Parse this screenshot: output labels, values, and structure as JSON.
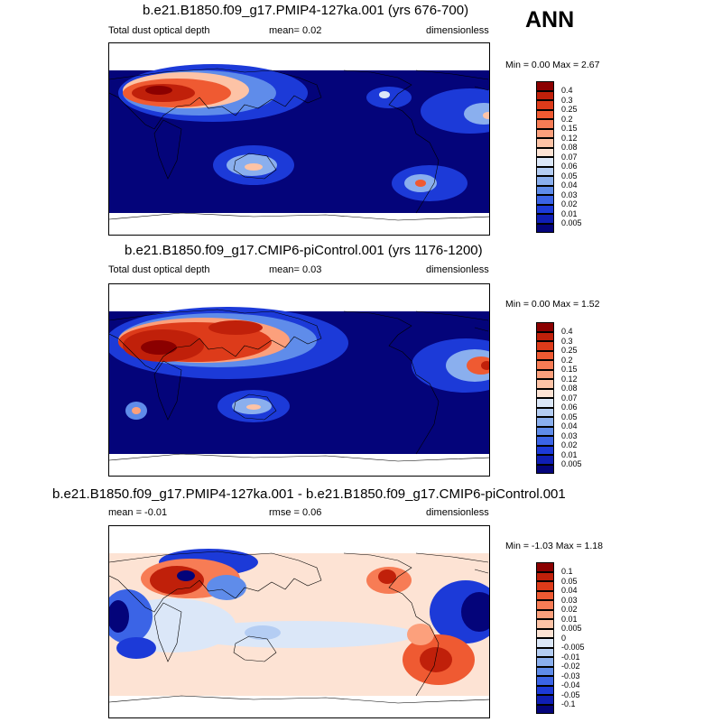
{
  "season": "ANN",
  "panels": [
    {
      "title": "b.e21.B1850.f09_g17.PMIP4-127ka.001 (yrs 676-700)",
      "left_label": "Total dust optical depth",
      "center_label": "mean=   0.02",
      "right_label": "dimensionless",
      "minmax": "Min =   0.00 Max =   2.67",
      "colorbar": {
        "labels": [
          "0.4",
          "0.3",
          "0.25",
          "0.2",
          "0.15",
          "0.12",
          "0.08",
          "0.07",
          "0.06",
          "0.05",
          "0.04",
          "0.03",
          "0.02",
          "0.01",
          "0.005"
        ],
        "colors": [
          "#8b0000",
          "#c0200a",
          "#dd3b1a",
          "#ef5a32",
          "#f77c55",
          "#fca07c",
          "#fdc3a6",
          "#fde3d4",
          "#dbe7f8",
          "#b4cdf3",
          "#8aafee",
          "#5f8cea",
          "#3b64e6",
          "#1c3ad8",
          "#0f1eb4",
          "#04047a"
        ]
      },
      "map": "dust_127ka"
    },
    {
      "title": "b.e21.B1850.f09_g17.CMIP6-piControl.001 (yrs 1176-1200)",
      "left_label": "Total dust optical depth",
      "center_label": "mean=   0.03",
      "right_label": "dimensionless",
      "minmax": "Min =   0.00 Max =   1.52",
      "colorbar": {
        "labels": [
          "0.4",
          "0.3",
          "0.25",
          "0.2",
          "0.15",
          "0.12",
          "0.08",
          "0.07",
          "0.06",
          "0.05",
          "0.04",
          "0.03",
          "0.02",
          "0.01",
          "0.005"
        ],
        "colors": [
          "#8b0000",
          "#c0200a",
          "#dd3b1a",
          "#ef5a32",
          "#f77c55",
          "#fca07c",
          "#fdc3a6",
          "#fde3d4",
          "#dbe7f8",
          "#b4cdf3",
          "#8aafee",
          "#5f8cea",
          "#3b64e6",
          "#1c3ad8",
          "#0f1eb4",
          "#04047a"
        ]
      },
      "map": "dust_pi"
    },
    {
      "title": "b.e21.B1850.f09_g17.PMIP4-127ka.001 - b.e21.B1850.f09_g17.CMIP6-piControl.001",
      "left_label": "mean =  -0.01",
      "center_label": "rmse =   0.06",
      "right_label": "dimensionless",
      "minmax": "Min =  -1.03 Max =   1.18",
      "colorbar": {
        "labels": [
          "0.1",
          "0.05",
          "0.04",
          "0.03",
          "0.02",
          "0.01",
          "0.005",
          "0",
          "-0.005",
          "-0.01",
          "-0.02",
          "-0.03",
          "-0.04",
          "-0.05",
          "-0.1"
        ],
        "colors": [
          "#8b0000",
          "#c0200a",
          "#dd3b1a",
          "#ef5a32",
          "#f77c55",
          "#fca07c",
          "#fdc3a6",
          "#fde3d4",
          "#dbe7f8",
          "#b4cdf3",
          "#8aafee",
          "#5f8cea",
          "#3b64e6",
          "#1c3ad8",
          "#0f1eb4",
          "#04047a"
        ]
      },
      "map": "diff"
    }
  ]
}
